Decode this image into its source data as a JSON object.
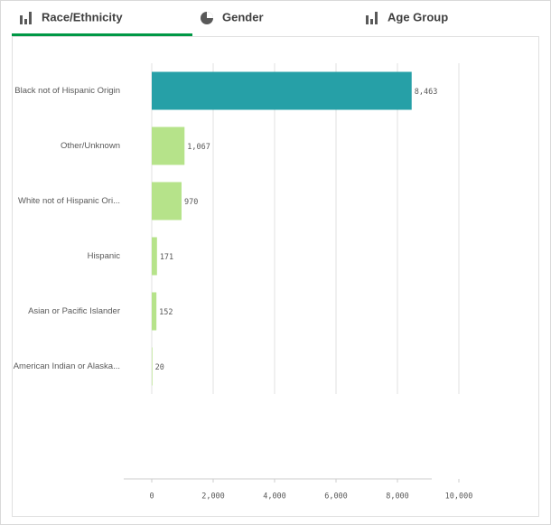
{
  "tabs": [
    "Race/Ethnicity",
    "Gender",
    "Age Group"
  ],
  "chart_data": {
    "type": "bar",
    "orientation": "horizontal",
    "categories": [
      "Black not of Hispanic Origin",
      "Other/Unknown",
      "White not of Hispanic Ori...",
      "Hispanic",
      "Asian or Pacific Islander",
      "American Indian or Alaska..."
    ],
    "values": [
      8463,
      1067,
      970,
      171,
      152,
      20
    ],
    "value_labels": [
      "8,463",
      "1,067",
      "970",
      "171",
      "152",
      "20"
    ],
    "colors": [
      "#26a0a7",
      "#b6e38a",
      "#b6e38a",
      "#b6e38a",
      "#b6e38a",
      "#b6e38a"
    ],
    "xlim": [
      0,
      10000
    ],
    "xticks": [
      0,
      {
        "value": 2000,
        "label": "2,000"
      },
      {
        "value": 4000,
        "label": "4,000"
      },
      {
        "value": 6000,
        "label": "6,000"
      },
      {
        "value": 8000,
        "label": "8,000"
      },
      {
        "value": 10000,
        "label": "10,000"
      }
    ],
    "grid": true
  }
}
